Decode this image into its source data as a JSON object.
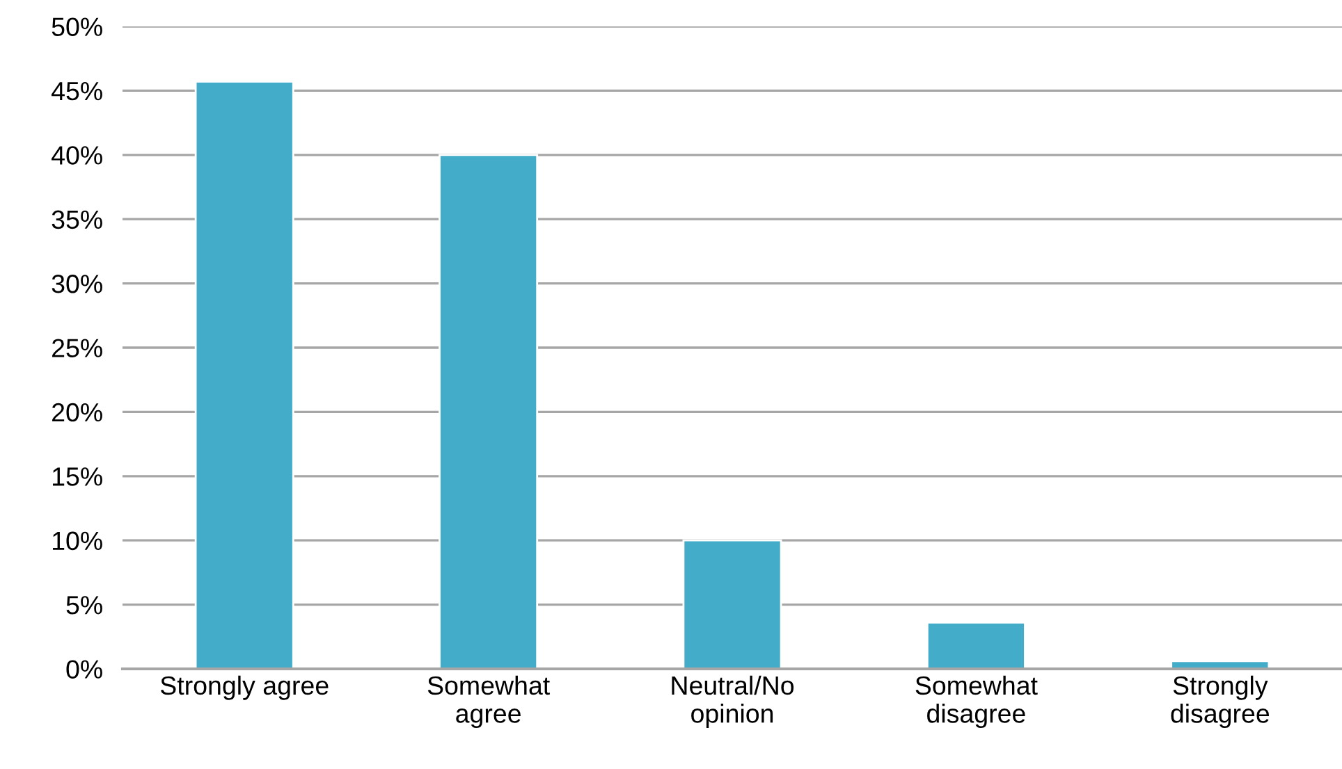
{
  "chart_data": {
    "type": "bar",
    "categories": [
      "Strongly agree",
      "Somewhat\nagree",
      "Neutral/No\nopinion",
      "Somewhat\ndisagree",
      "Strongly\ndisagree"
    ],
    "values": [
      45.7,
      40,
      10,
      3.6,
      0.6
    ],
    "color": "#43acc8",
    "ylim": [
      0,
      50
    ],
    "yticks": [
      {
        "value": 0,
        "label": "0%"
      },
      {
        "value": 5,
        "label": "5%"
      },
      {
        "value": 10,
        "label": "10%"
      },
      {
        "value": 15,
        "label": "15%"
      },
      {
        "value": 20,
        "label": "20%"
      },
      {
        "value": 25,
        "label": "25%"
      },
      {
        "value": 30,
        "label": "30%"
      },
      {
        "value": 35,
        "label": "35%"
      },
      {
        "value": 40,
        "label": "40%"
      },
      {
        "value": 45,
        "label": "45%"
      },
      {
        "value": 50,
        "label": "50%"
      }
    ],
    "grid": "y"
  }
}
